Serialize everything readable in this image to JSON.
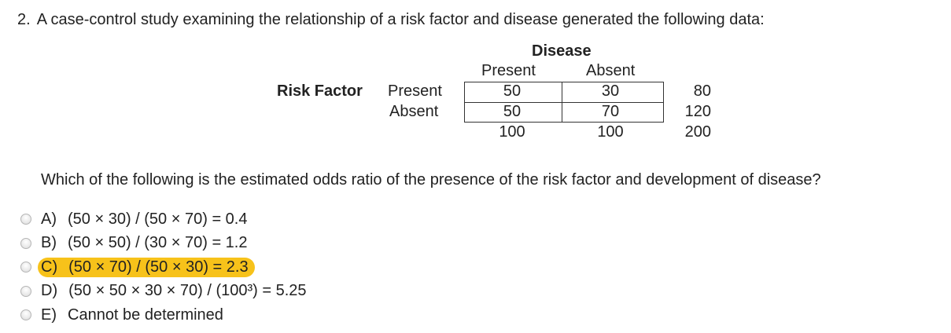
{
  "question": {
    "number": "2.",
    "text": "A case-control study examining the relationship of a risk factor and disease generated the following data:"
  },
  "table": {
    "column_group": "Disease",
    "columns": [
      "Present",
      "Absent"
    ],
    "row_group": "Risk Factor",
    "rows": [
      {
        "label": "Present",
        "values": [
          "50",
          "30"
        ],
        "total": "80"
      },
      {
        "label": "Absent",
        "values": [
          "50",
          "70"
        ],
        "total": "120"
      }
    ],
    "column_totals": [
      "100",
      "100"
    ],
    "grand_total": "200"
  },
  "prompt": "Which of the following is the estimated odds ratio of the presence of the risk factor and development of disease?",
  "choices": [
    {
      "key": "A)",
      "text": "(50 × 30) / (50 × 70) = 0.4"
    },
    {
      "key": "B)",
      "text": "(50 × 50) / (30 × 70) = 1.2"
    },
    {
      "key": "C)",
      "text": "(50 × 70) / (50 × 30) = 2.3",
      "highlighted": true
    },
    {
      "key": "D)",
      "text": "(50 × 50 × 30 × 70) / (100³) = 5.25"
    },
    {
      "key": "E)",
      "text": "Cannot be determined"
    }
  ],
  "highlight_color": "#f7c21a"
}
